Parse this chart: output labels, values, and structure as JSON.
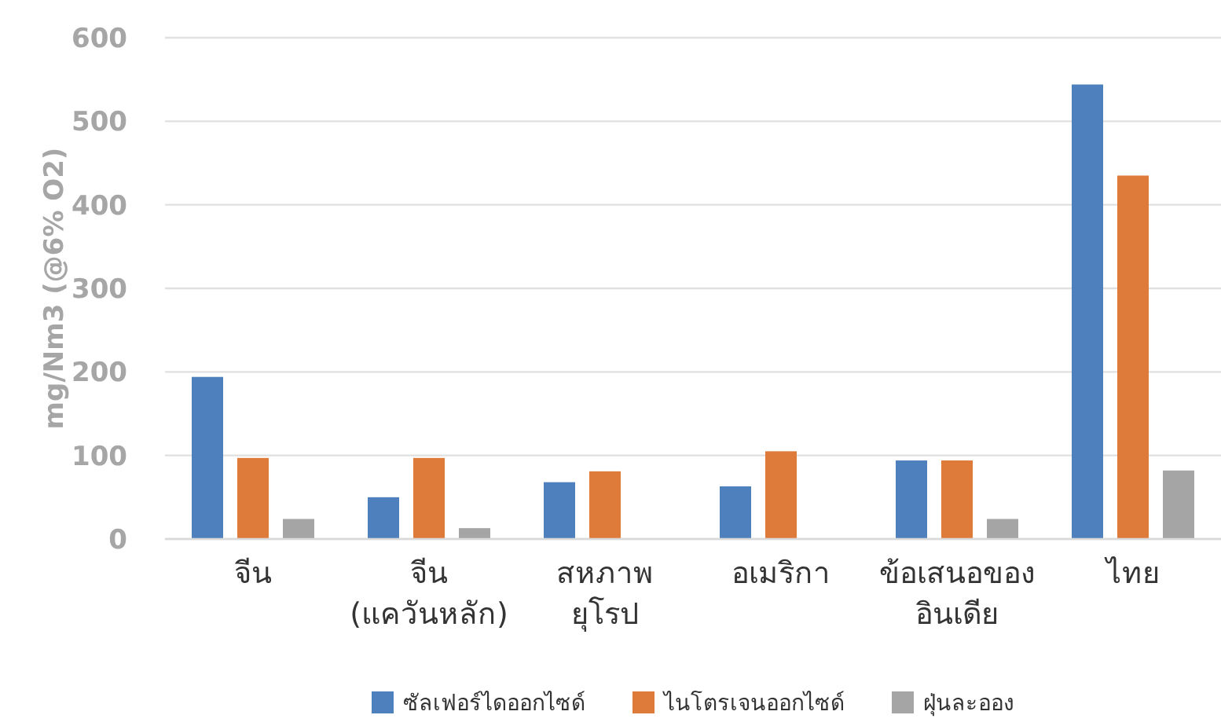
{
  "chart_data": {
    "type": "bar",
    "ylabel": "mg/Nm3 (@6% O2)",
    "categories": [
      "จีน",
      "จีน\n(แควันหลัก)",
      "สหภาพ\nยุโรป",
      "อเมริกา",
      "ข้อเสนอของ\nอินเดีย",
      "ไทย"
    ],
    "series": [
      {
        "name": "ซัลเฟอร์ไดออกไซด์",
        "color": "#4e80bd",
        "values": [
          194,
          50,
          68,
          63,
          94,
          544
        ]
      },
      {
        "name": "ไนโตรเจนออกไซด์",
        "color": "#de7b3b",
        "values": [
          97,
          97,
          81,
          105,
          94,
          435
        ]
      },
      {
        "name": "ฝุ่นละออง",
        "color": "#a5a5a5",
        "values": [
          24,
          13,
          null,
          null,
          24,
          82
        ]
      }
    ],
    "ylim": [
      0,
      600
    ],
    "yticks": [
      0,
      100,
      200,
      300,
      400,
      500,
      600
    ],
    "grid": "y",
    "legend": "bottom"
  }
}
